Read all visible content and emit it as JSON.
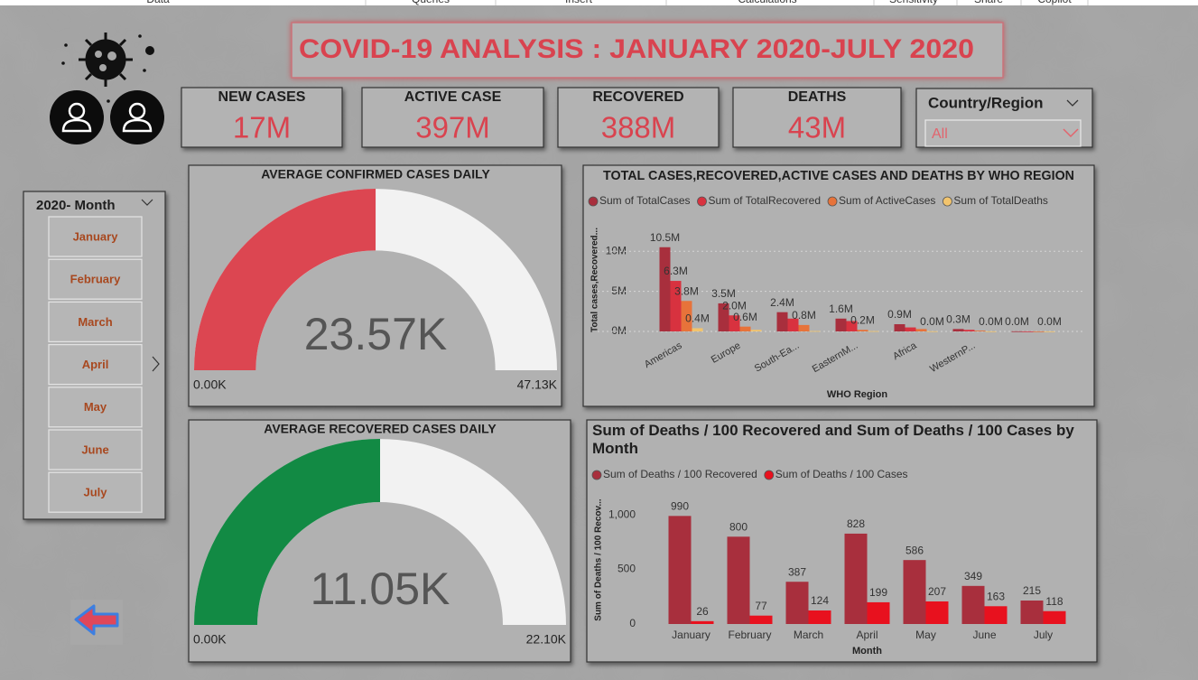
{
  "ribbon": [
    "Data",
    "Queries",
    "Insert",
    "Calculations",
    "Sensitivity",
    "Share",
    "Copilot"
  ],
  "title": "COVID-19 ANALYSIS : JANUARY 2020-JULY 2020",
  "kpis": [
    {
      "label": "NEW CASES",
      "value": "17M"
    },
    {
      "label": "ACTIVE CASE",
      "value": "397M"
    },
    {
      "label": "RECOVERED",
      "value": "388M"
    },
    {
      "label": "DEATHS",
      "value": "43M"
    }
  ],
  "country_slicer": {
    "label": "Country/Region",
    "selected": "All"
  },
  "month_slicer": {
    "label": "2020- Month",
    "items": [
      "January",
      "February",
      "March",
      "April",
      "May",
      "June",
      "July"
    ]
  },
  "chart_data": [
    {
      "type": "gauge",
      "title": "AVERAGE CONFIRMED CASES DAILY",
      "value": 23570,
      "value_label": "23.57K",
      "lim": [
        0,
        47130
      ],
      "ticks": [
        {
          "value": 0,
          "label": "0.00K"
        },
        {
          "value": 47130,
          "label": "47.13K"
        }
      ],
      "color": "#dc4651"
    },
    {
      "type": "gauge",
      "title": "AVERAGE RECOVERED CASES DAILY",
      "value": 11050,
      "value_label": "11.05K",
      "lim": [
        0,
        22100
      ],
      "ticks": [
        {
          "value": 0,
          "label": "0.00K"
        },
        {
          "value": 22100,
          "label": "22.10K"
        }
      ],
      "color": "#128a44"
    },
    {
      "type": "bar",
      "title": "TOTAL CASES,RECOVERED,ACTIVE CASES AND DEATHS BY WHO REGION",
      "x_label": "WHO Region",
      "y_label": "Total cases,Recovered...",
      "categories": [
        "Americas",
        "Europe",
        "South-Ea...",
        "EasternM...",
        "Africa",
        "WesternP...",
        null
      ],
      "series": [
        {
          "name": "Sum of TotalCases",
          "color": "#a82f3d",
          "values": [
            10.5,
            3.5,
            2.4,
            1.6,
            0.9,
            0.3,
            0.02
          ],
          "value_labels": [
            "10.5M",
            "3.5M",
            "2.4M",
            "1.6M",
            "0.9M",
            "0.3M",
            "0.0M"
          ]
        },
        {
          "name": "Sum of TotalRecovered",
          "color": "#d8323f",
          "values": [
            6.3,
            2.0,
            1.6,
            1.3,
            0.5,
            0.2,
            0.01
          ],
          "value_labels": [
            "6.3M",
            "2.0M",
            null,
            null,
            null,
            null,
            null
          ]
        },
        {
          "name": "Sum of ActiveCases",
          "color": "#e7733a",
          "values": [
            3.8,
            0.6,
            0.8,
            0.2,
            0.3,
            0.1,
            0.01
          ],
          "value_labels": [
            "3.8M",
            "0.6M",
            "0.8M",
            "0.2M",
            null,
            null,
            null
          ]
        },
        {
          "name": "Sum of TotalDeaths",
          "color": "#f2c46d",
          "values": [
            0.4,
            0.2,
            0.05,
            0.04,
            0.02,
            0.01,
            0.003
          ],
          "value_labels": [
            "0.4M",
            null,
            null,
            null,
            "0.0M",
            "0.0M",
            "0.0M"
          ]
        }
      ],
      "ylim": [
        0,
        12.5
      ],
      "yticks": [
        {
          "value": 0,
          "label": "0M"
        },
        {
          "value": 5,
          "label": "5M"
        },
        {
          "value": 10,
          "label": "10M"
        }
      ],
      "grid": true
    },
    {
      "type": "bar",
      "title": "Sum of Deaths / 100 Recovered and Sum of Deaths / 100 Cases by Month",
      "x_label": "Month",
      "y_label": "Sum of Deaths / 100 Recov...",
      "categories": [
        "January",
        "February",
        "March",
        "April",
        "May",
        "June",
        "July"
      ],
      "series": [
        {
          "name": "Sum of Deaths / 100 Recovered",
          "color": "#a82f3d",
          "values": [
            990,
            800,
            387,
            828,
            586,
            349,
            215
          ]
        },
        {
          "name": "Sum of Deaths / 100 Cases",
          "color": "#e8111e",
          "values": [
            26,
            77,
            124,
            199,
            207,
            163,
            118
          ]
        }
      ],
      "ylim": [
        0,
        1150
      ],
      "yticks": [
        0,
        500,
        {
          "value": 1000,
          "label": "1,000"
        }
      ],
      "grid": false
    }
  ]
}
